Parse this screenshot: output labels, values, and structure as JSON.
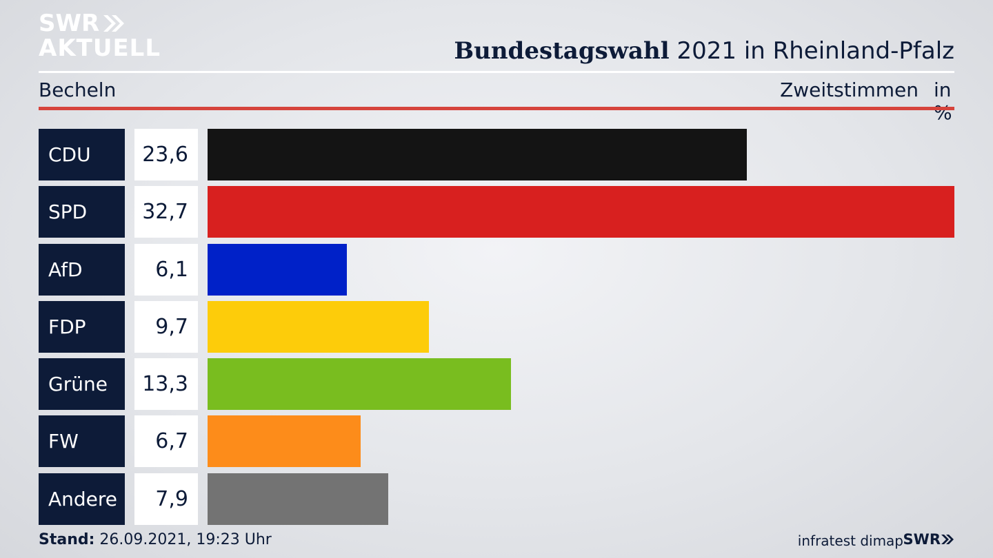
{
  "logo": {
    "line1": "SWR",
    "line2": "AKTUELL"
  },
  "header": {
    "title_bold": "Bundestagswahl",
    "title_rest": " 2021 in Rheinland-Pfalz"
  },
  "subheader": {
    "location": "Becheln",
    "metric": "Zweitstimmen",
    "unit": "in %"
  },
  "chart_data": {
    "type": "bar",
    "orientation": "horizontal",
    "categories": [
      "CDU",
      "SPD",
      "AfD",
      "FDP",
      "Grüne",
      "FW",
      "Andere"
    ],
    "values": [
      23.6,
      32.7,
      6.1,
      9.7,
      13.3,
      6.7,
      7.9
    ],
    "value_labels": [
      "23,6",
      "32,7",
      "6,1",
      "9,7",
      "13,3",
      "6,7",
      "7,9"
    ],
    "colors": [
      "#141414",
      "#d8201f",
      "#0021c8",
      "#fdcc0a",
      "#79bd1f",
      "#fd8c1a",
      "#737373"
    ],
    "title": "Bundestagswahl 2021 in Rheinland-Pfalz",
    "xlabel": "",
    "ylabel": "",
    "xlim": [
      0,
      32.7
    ],
    "grid": false,
    "legend": "none"
  },
  "footer": {
    "stand_label": "Stand:",
    "stand_value": " 26.09.2021, 19:23 Uhr",
    "source": "infratest dimap",
    "brand": "SWR"
  }
}
